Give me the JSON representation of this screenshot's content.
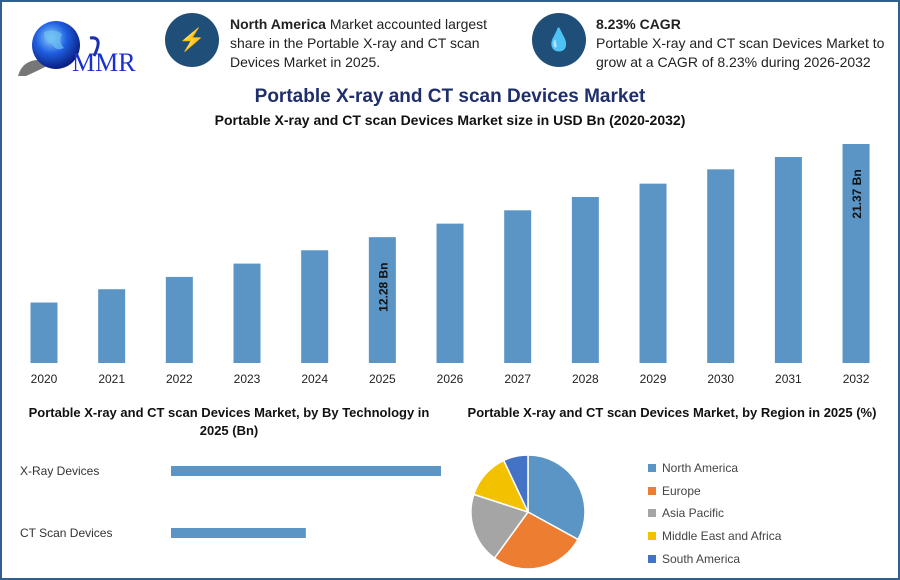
{
  "logo": {
    "text": "MMR"
  },
  "info_left": {
    "icon": "lightning-icon",
    "bold": "North America",
    "text": " Market accounted largest share in the Portable X-ray and CT scan Devices Market in 2025."
  },
  "info_right": {
    "icon": "growth-icon",
    "bold": "8.23% CAGR",
    "text": "Portable X-ray and CT scan Devices Market to grow at a CAGR of 8.23% during 2026-2032"
  },
  "page_title": "Portable X-ray and CT scan Devices Market",
  "colors": {
    "bar": "#5b95c5",
    "icon_circle": "#1f4e79",
    "title": "#1f2f6b",
    "frame": "#2f5f8f"
  },
  "chart_data": [
    {
      "type": "bar",
      "title": "Portable X-ray and CT scan Devices Market size in USD Bn (2020-2032)",
      "categories": [
        "2020",
        "2021",
        "2022",
        "2023",
        "2024",
        "2025",
        "2026",
        "2027",
        "2028",
        "2029",
        "2030",
        "2031",
        "2032"
      ],
      "values": [
        5.9,
        7.2,
        8.4,
        9.7,
        11.0,
        12.28,
        13.6,
        14.9,
        16.2,
        17.5,
        18.9,
        20.1,
        21.37
      ],
      "data_labels": {
        "2025": "12.28 Bn",
        "2032": "21.37 Bn"
      },
      "ylim": [
        0,
        22
      ],
      "grid": false
    },
    {
      "type": "bar",
      "orientation": "horizontal",
      "title": "Portable X-ray and CT scan Devices Market, by By Technology in 2025 (Bn)",
      "categories": [
        "X-Ray Devices",
        "CT Scan Devices"
      ],
      "values": [
        8.19,
        4.09
      ]
    },
    {
      "type": "pie",
      "title": "Portable X-ray and CT scan Devices Market, by Region in 2025 (%)",
      "legend_position": "right",
      "slices": [
        {
          "name": "North America",
          "value": 33,
          "color": "#5b95c5"
        },
        {
          "name": "Europe",
          "value": 27,
          "color": "#ed7d31"
        },
        {
          "name": "Asia Pacific",
          "value": 20,
          "color": "#a5a5a5"
        },
        {
          "name": "Middle East and Africa",
          "value": 13,
          "color": "#f2c100"
        },
        {
          "name": "South America",
          "value": 7,
          "color": "#4472c4"
        }
      ]
    }
  ]
}
